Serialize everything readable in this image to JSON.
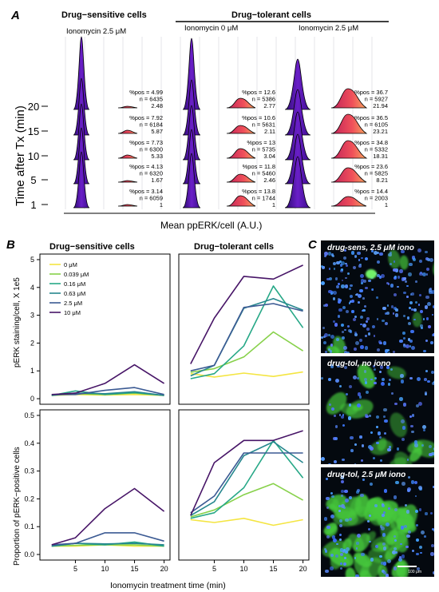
{
  "panelA": {
    "letter": "A",
    "header_sensitive": "Drug−sensitive cells",
    "header_tolerant": "Drug−tolerant cells",
    "group_labels": [
      "Ionomycin 2.5 μM",
      "Ionomycin 0 μM",
      "Ionomycin 2.5 μM"
    ],
    "ylabel": "Time after Tx (min)",
    "xlabel": "Mean ppERK/cell (A.U.)",
    "time_labels": [
      "20",
      "15",
      "10",
      "5",
      "1"
    ],
    "stats": [
      [
        {
          "pos": "%pos = 4.99",
          "n": "n = 6435",
          "v": "2.48"
        },
        {
          "pos": "%pos = 7.92",
          "n": "n = 6184",
          "v": "5.87"
        },
        {
          "pos": "%pos = 7.73",
          "n": "n = 6300",
          "v": "5.33"
        },
        {
          "pos": "%pos = 4.13",
          "n": "n = 6320",
          "v": "1.67"
        },
        {
          "pos": "%pos = 3.14",
          "n": "n = 6059",
          "v": "1"
        }
      ],
      [
        {
          "pos": "%pos = 12.6",
          "n": "n = 5386",
          "v": "2.77"
        },
        {
          "pos": "%pos = 10.6",
          "n": "n = 5631",
          "v": "2.11"
        },
        {
          "pos": "%pos = 13",
          "n": "n = 5735",
          "v": "3.04"
        },
        {
          "pos": "%pos = 11.8",
          "n": "n = 5460",
          "v": "2.46"
        },
        {
          "pos": "%pos = 13.8",
          "n": "n = 1744",
          "v": "1"
        }
      ],
      [
        {
          "pos": "%pos = 36.7",
          "n": "n = 5927",
          "v": "21.94"
        },
        {
          "pos": "%pos = 36.5",
          "n": "n = 6105",
          "v": "23.21"
        },
        {
          "pos": "%pos = 34.8",
          "n": "n = 5332",
          "v": "18.31"
        },
        {
          "pos": "%pos = 23.6",
          "n": "n = 5825",
          "v": "8.21"
        },
        {
          "pos": "%pos = 14.4",
          "n": "n = 2003",
          "v": "1"
        }
      ]
    ]
  },
  "panelB": {
    "letter": "B",
    "title_sensitive": "Drug−sensitive cells",
    "title_tolerant": "Drug−tolerant cells",
    "ylabel_top": "pERK staining/cell, X 1e5",
    "ylabel_bottom": "Proportion of pERK−positive cells",
    "xlabel": "Ionomycin treatment time (min)",
    "legend": [
      "0 μM",
      "0.039 μM",
      "0.16 μM",
      "0.63 μM",
      "2.5 μM",
      "10 μM"
    ]
  },
  "panelC": {
    "letter": "C",
    "labels": [
      "drug-sens, 2.5 μM iono",
      "drug-tol, no iono",
      "drug-tol, 2.5 μM iono"
    ],
    "scalebar": "100 μm"
  },
  "colors": [
    "#f4e542",
    "#87d14a",
    "#27a887",
    "#26878e",
    "#3b5a93",
    "#471567"
  ],
  "chart_data": [
    {
      "type": "line",
      "title": "Drug−sensitive cells",
      "ylabel": "pERK staining/cell, X 1e5",
      "x": [
        1,
        5,
        10,
        15,
        20
      ],
      "ylim": [
        0,
        5
      ],
      "xticks": [
        5,
        10,
        15,
        20
      ],
      "yticks": [
        0,
        1,
        2,
        3,
        4,
        5
      ],
      "series": [
        {
          "name": "0 μM",
          "values": [
            0.12,
            0.15,
            0.13,
            0.15,
            0.12
          ]
        },
        {
          "name": "0.039 μM",
          "values": [
            0.12,
            0.18,
            0.15,
            0.2,
            0.12
          ]
        },
        {
          "name": "0.16 μM",
          "values": [
            0.12,
            0.28,
            0.15,
            0.22,
            0.12
          ]
        },
        {
          "name": "0.63 μM",
          "values": [
            0.12,
            0.2,
            0.18,
            0.25,
            0.12
          ]
        },
        {
          "name": "2.5 μM",
          "values": [
            0.15,
            0.15,
            0.3,
            0.4,
            0.15
          ]
        },
        {
          "name": "10 μM",
          "values": [
            0.15,
            0.2,
            0.55,
            1.22,
            0.55
          ]
        }
      ]
    },
    {
      "type": "line",
      "title": "Drug−tolerant cells",
      "ylabel": "pERK staining/cell, X 1e5",
      "x": [
        1,
        5,
        10,
        15,
        20
      ],
      "ylim": [
        0,
        5
      ],
      "xticks": [
        5,
        10,
        15,
        20
      ],
      "yticks": [
        0,
        1,
        2,
        3,
        4,
        5
      ],
      "series": [
        {
          "name": "0 μM",
          "values": [
            0.9,
            0.78,
            0.92,
            0.8,
            0.96
          ]
        },
        {
          "name": "0.039 μM",
          "values": [
            0.95,
            1.08,
            1.5,
            2.4,
            1.72
          ]
        },
        {
          "name": "0.16 μM",
          "values": [
            0.72,
            0.9,
            1.9,
            4.05,
            2.55
          ]
        },
        {
          "name": "0.63 μM",
          "values": [
            0.82,
            1.2,
            3.25,
            3.6,
            3.18
          ]
        },
        {
          "name": "2.5 μM",
          "values": [
            1.0,
            1.2,
            3.28,
            3.42,
            3.15
          ]
        },
        {
          "name": "10 μM",
          "values": [
            1.25,
            2.9,
            4.4,
            4.3,
            4.8
          ]
        }
      ]
    },
    {
      "type": "line",
      "title": "Drug−sensitive cells",
      "ylabel": "Proportion of pERK−positive cells",
      "xlabel": "Ionomycin treatment time (min)",
      "x": [
        1,
        5,
        10,
        15,
        20
      ],
      "ylim": [
        0,
        0.5
      ],
      "xticks": [
        5,
        10,
        15,
        20
      ],
      "yticks": [
        0.0,
        0.1,
        0.2,
        0.3,
        0.4,
        0.5
      ],
      "series": [
        {
          "name": "0 μM",
          "values": [
            0.03,
            0.03,
            0.035,
            0.03,
            0.03
          ]
        },
        {
          "name": "0.039 μM",
          "values": [
            0.03,
            0.033,
            0.035,
            0.035,
            0.03
          ]
        },
        {
          "name": "0.16 μM",
          "values": [
            0.03,
            0.04,
            0.035,
            0.045,
            0.03
          ]
        },
        {
          "name": "0.63 μM",
          "values": [
            0.03,
            0.04,
            0.038,
            0.04,
            0.035
          ]
        },
        {
          "name": "2.5 μM",
          "values": [
            0.035,
            0.04,
            0.078,
            0.078,
            0.048
          ]
        },
        {
          "name": "10 μM",
          "values": [
            0.035,
            0.06,
            0.165,
            0.237,
            0.155
          ]
        }
      ]
    },
    {
      "type": "line",
      "title": "Drug−tolerant cells",
      "xlabel": "Ionomycin treatment time (min)",
      "x": [
        1,
        5,
        10,
        15,
        20
      ],
      "ylim": [
        0,
        0.5
      ],
      "xticks": [
        5,
        10,
        15,
        20
      ],
      "yticks": [
        0.0,
        0.1,
        0.2,
        0.3,
        0.4,
        0.5
      ],
      "series": [
        {
          "name": "0 μM",
          "values": [
            0.125,
            0.115,
            0.13,
            0.105,
            0.125
          ]
        },
        {
          "name": "0.039 μM",
          "values": [
            0.135,
            0.16,
            0.215,
            0.255,
            0.195
          ]
        },
        {
          "name": "0.16 μM",
          "values": [
            0.13,
            0.15,
            0.24,
            0.41,
            0.275
          ]
        },
        {
          "name": "0.63 μM",
          "values": [
            0.14,
            0.19,
            0.355,
            0.405,
            0.33
          ]
        },
        {
          "name": "2.5 μM",
          "values": [
            0.15,
            0.21,
            0.365,
            0.365,
            0.365
          ]
        },
        {
          "name": "10 μM",
          "values": [
            0.14,
            0.33,
            0.41,
            0.41,
            0.445
          ]
        }
      ]
    }
  ]
}
